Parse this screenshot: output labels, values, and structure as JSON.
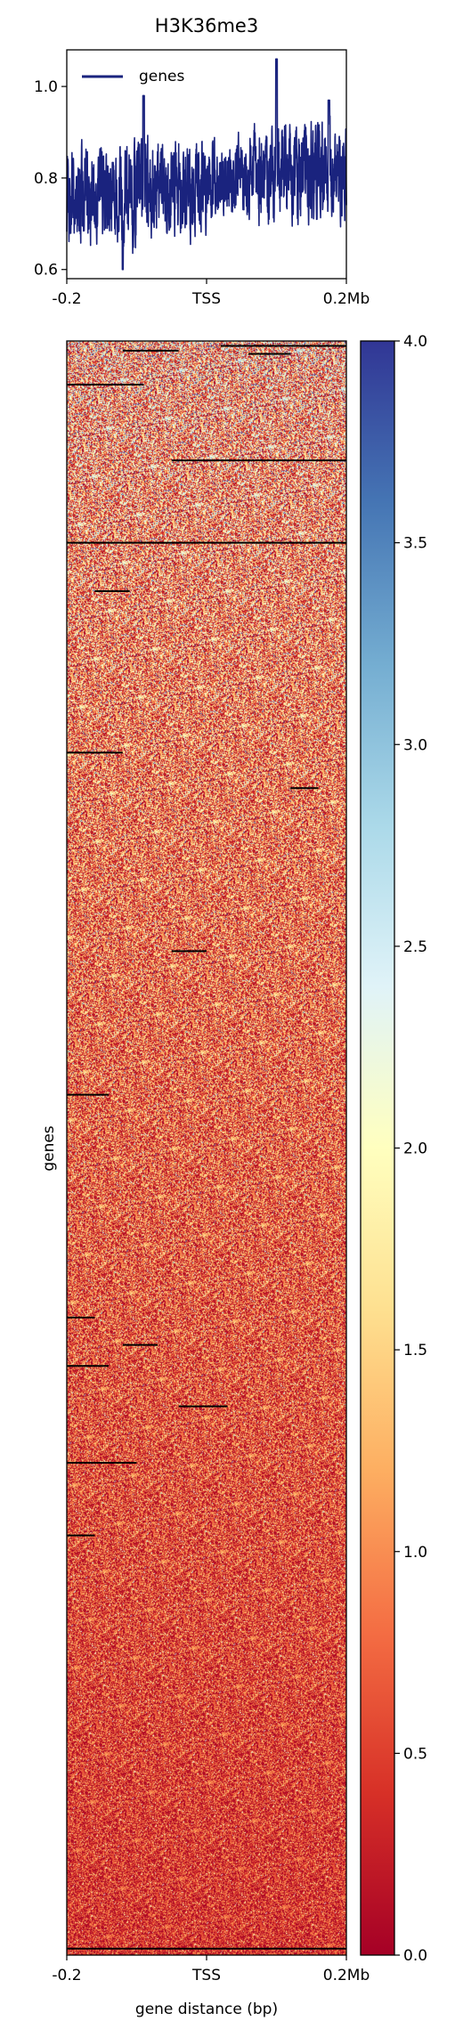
{
  "chart_data": [
    {
      "type": "line",
      "title": "H3K36me3",
      "xlabel": "",
      "ylabel": "",
      "x_ticks": [
        "-0.2",
        "TSS",
        "0.2Mb"
      ],
      "y_ticks": [
        "0.6",
        "0.8",
        "1.0"
      ],
      "ylim": [
        0.58,
        1.08
      ],
      "legend": {
        "placement": "top-left",
        "entries": [
          "genes"
        ]
      },
      "grid": false,
      "series": [
        {
          "name": "genes",
          "color": "#1a237e",
          "x_range": [
            -0.2,
            0.2
          ],
          "segments": [
            {
              "from": -0.2,
              "to": -0.1,
              "low": 0.62,
              "high": 0.94,
              "mean": 0.76
            },
            {
              "from": -0.1,
              "to": 0.0,
              "low": 0.64,
              "high": 0.96,
              "mean": 0.78
            },
            {
              "from": 0.0,
              "to": 0.06,
              "low": 0.68,
              "high": 0.93,
              "mean": 0.8
            },
            {
              "from": 0.06,
              "to": 0.2,
              "low": 0.66,
              "high": 0.98,
              "mean": 0.81
            }
          ],
          "peaks": [
            {
              "x": 0.1,
              "y": 1.06
            },
            {
              "x": -0.09,
              "y": 0.98
            },
            {
              "x": 0.175,
              "y": 0.97
            }
          ],
          "minimum": {
            "x": -0.12,
            "y": 0.6
          }
        }
      ]
    },
    {
      "type": "heatmap",
      "xlabel": "gene distance (bp)",
      "ylabel": "genes",
      "x_ticks": [
        "-0.2",
        "TSS",
        "0.2Mb"
      ],
      "colorbar": {
        "colormap": "RdYlBu",
        "range": [
          0.0,
          4.0
        ],
        "ticks": [
          "0.0",
          "0.5",
          "1.0",
          "1.5",
          "2.0",
          "2.5",
          "3.0",
          "3.5",
          "4.0"
        ],
        "colors": [
          "#a50026",
          "#d73027",
          "#f46d43",
          "#fdae61",
          "#fee090",
          "#ffffbf",
          "#e0f3f8",
          "#abd9e9",
          "#74add1",
          "#4575b4",
          "#313695"
        ]
      },
      "row_profile": {
        "description_rows": "rows sorted by mean signal, top rows highest",
        "mean_top": 1.5,
        "mean_bottom": 0.45,
        "spread_top": 2.4,
        "spread_bottom": 0.9
      },
      "missing_rows": [
        {
          "row_fraction": 0.003,
          "x_from": 0.02,
          "x_to": 0.2
        },
        {
          "row_fraction": 0.006,
          "x_from": -0.12,
          "x_to": -0.04
        },
        {
          "row_fraction": 0.008,
          "x_from": 0.06,
          "x_to": 0.12
        },
        {
          "row_fraction": 0.027,
          "x_from": -0.2,
          "x_to": -0.09
        },
        {
          "row_fraction": 0.074,
          "x_from": -0.05,
          "x_to": 0.2
        },
        {
          "row_fraction": 0.125,
          "x_from": -0.2,
          "x_to": 0.2
        },
        {
          "row_fraction": 0.155,
          "x_from": -0.16,
          "x_to": -0.11
        },
        {
          "row_fraction": 0.255,
          "x_from": -0.2,
          "x_to": -0.12
        },
        {
          "row_fraction": 0.277,
          "x_from": 0.12,
          "x_to": 0.16
        },
        {
          "row_fraction": 0.378,
          "x_from": -0.05,
          "x_to": 0.0
        },
        {
          "row_fraction": 0.467,
          "x_from": -0.2,
          "x_to": -0.14
        },
        {
          "row_fraction": 0.605,
          "x_from": -0.2,
          "x_to": -0.16
        },
        {
          "row_fraction": 0.622,
          "x_from": -0.12,
          "x_to": -0.07
        },
        {
          "row_fraction": 0.635,
          "x_from": -0.2,
          "x_to": -0.14
        },
        {
          "row_fraction": 0.66,
          "x_from": -0.04,
          "x_to": 0.03
        },
        {
          "row_fraction": 0.695,
          "x_from": -0.2,
          "x_to": -0.1
        },
        {
          "row_fraction": 0.74,
          "x_from": -0.2,
          "x_to": -0.16
        },
        {
          "row_fraction": 0.996,
          "x_from": -0.2,
          "x_to": 0.2
        }
      ]
    }
  ]
}
